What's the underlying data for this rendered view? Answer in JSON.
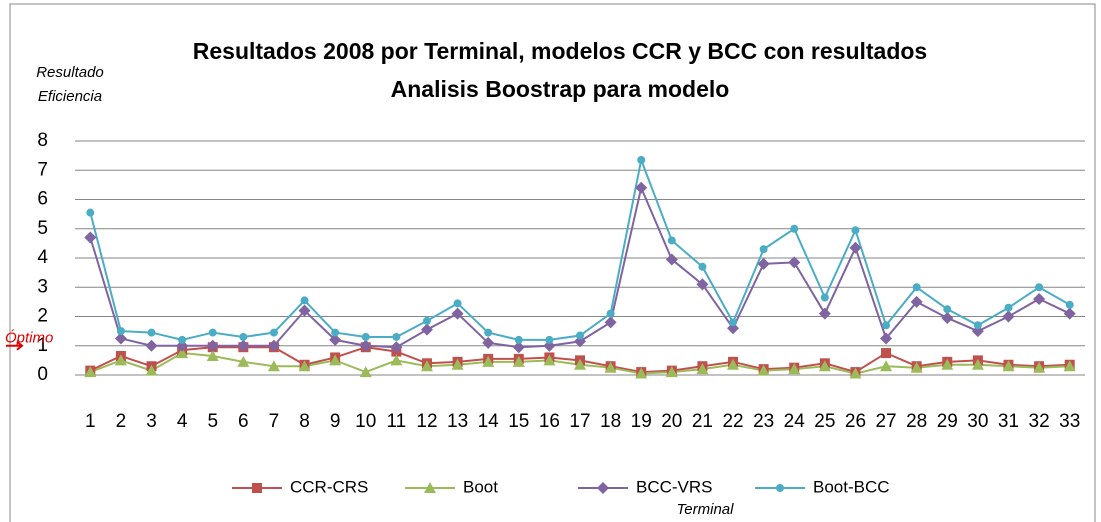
{
  "chart_data": {
    "type": "line",
    "title": [
      "Resultados 2008 por Terminal, modelos CCR y BCC con resultados",
      "Analisis Boostrap para modelo"
    ],
    "ylabel": [
      "Resultado",
      "Eficiencia"
    ],
    "xlabel": "Terminal",
    "annotations": [
      {
        "text": "Óptimo",
        "y": 1
      }
    ],
    "categories": [
      "1",
      "2",
      "3",
      "4",
      "5",
      "6",
      "7",
      "8",
      "9",
      "10",
      "11",
      "12",
      "13",
      "14",
      "15",
      "16",
      "17",
      "18",
      "19",
      "20",
      "21",
      "22",
      "23",
      "24",
      "25",
      "26",
      "27",
      "28",
      "29",
      "30",
      "31",
      "32",
      "33"
    ],
    "series": [
      {
        "name": "CCR-CRS",
        "color": "#c0504d",
        "marker": "square",
        "values": [
          0.15,
          0.65,
          0.3,
          0.85,
          0.95,
          0.95,
          0.95,
          0.35,
          0.6,
          0.95,
          0.8,
          0.4,
          0.45,
          0.55,
          0.55,
          0.6,
          0.5,
          0.3,
          0.1,
          0.15,
          0.3,
          0.45,
          0.2,
          0.25,
          0.4,
          0.1,
          0.75,
          0.3,
          0.45,
          0.5,
          0.35,
          0.3,
          0.35
        ]
      },
      {
        "name": "Boot",
        "color": "#9bbb59",
        "marker": "triangle",
        "values": [
          0.1,
          0.5,
          0.15,
          0.75,
          0.65,
          0.45,
          0.3,
          0.3,
          0.5,
          0.1,
          0.5,
          0.3,
          0.35,
          0.45,
          0.45,
          0.5,
          0.35,
          0.25,
          0.05,
          0.1,
          0.2,
          0.35,
          0.15,
          0.2,
          0.3,
          0.05,
          0.3,
          0.25,
          0.35,
          0.35,
          0.3,
          0.25,
          0.3
        ]
      },
      {
        "name": "BCC-VRS",
        "color": "#8064a2",
        "marker": "diamond",
        "values": [
          4.7,
          1.25,
          1.0,
          1.0,
          1.0,
          1.0,
          1.0,
          2.2,
          1.2,
          1.0,
          0.95,
          1.55,
          2.1,
          1.1,
          0.95,
          1.0,
          1.15,
          1.8,
          6.4,
          3.95,
          3.1,
          1.6,
          3.8,
          3.85,
          2.1,
          4.35,
          1.25,
          2.5,
          1.95,
          1.5,
          2.0,
          2.6,
          2.1
        ]
      },
      {
        "name": "Boot-BCC",
        "color": "#4bacc6",
        "marker": "circle",
        "values": [
          5.55,
          1.5,
          1.45,
          1.2,
          1.45,
          1.3,
          1.45,
          2.55,
          1.45,
          1.3,
          1.3,
          1.85,
          2.45,
          1.45,
          1.2,
          1.2,
          1.35,
          2.1,
          7.35,
          4.6,
          3.7,
          1.8,
          4.3,
          5.0,
          2.65,
          4.95,
          1.7,
          3.0,
          2.25,
          1.7,
          2.3,
          3.0,
          2.4
        ]
      }
    ],
    "ylim": [
      0,
      8
    ],
    "yticks": [
      0,
      1,
      2,
      3,
      4,
      5,
      6,
      7,
      8
    ],
    "grid": true,
    "legend": "bottom"
  }
}
